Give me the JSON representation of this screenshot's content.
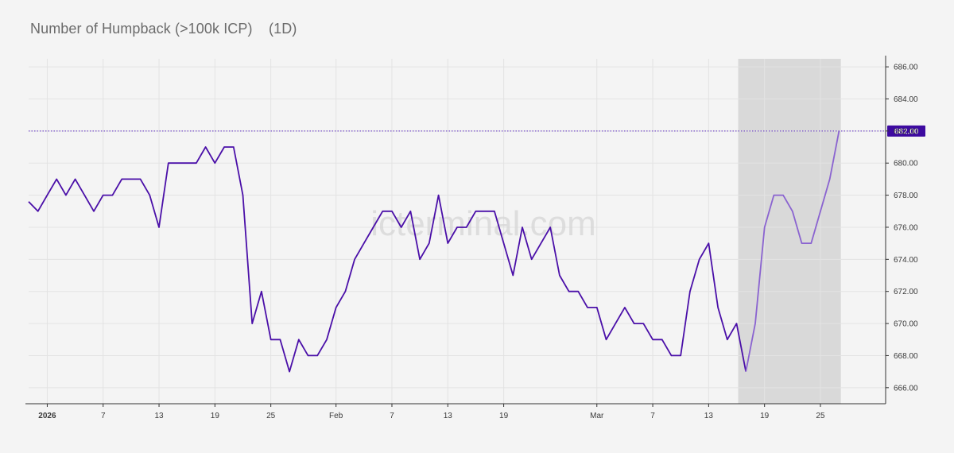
{
  "title": "Number of Humpback (>100k ICP)",
  "interval": "(1D)",
  "watermark": "icterminal.com",
  "chart_data": {
    "type": "line",
    "title": "Number of Humpback (>100k ICP)",
    "xlabel": "",
    "ylabel": "",
    "ylim": [
      665,
      686.5
    ],
    "yticks": [
      "666.00",
      "668.00",
      "670.00",
      "672.00",
      "674.00",
      "676.00",
      "678.00",
      "680.00",
      "682.00",
      "684.00",
      "686.00"
    ],
    "xticks": [
      {
        "date": "2026-01-01",
        "label": "2026",
        "bold": true
      },
      {
        "date": "2026-01-07",
        "label": "7"
      },
      {
        "date": "2026-01-13",
        "label": "13"
      },
      {
        "date": "2026-01-19",
        "label": "19"
      },
      {
        "date": "2026-01-25",
        "label": "25"
      },
      {
        "date": "2026-02-01",
        "label": "Feb"
      },
      {
        "date": "2026-02-07",
        "label": "7"
      },
      {
        "date": "2026-02-13",
        "label": "13"
      },
      {
        "date": "2026-02-19",
        "label": "19"
      },
      {
        "date": "2026-03-01",
        "label": "Mar"
      },
      {
        "date": "2026-03-07",
        "label": "7"
      },
      {
        "date": "2026-03-13",
        "label": "13"
      },
      {
        "date": "2026-03-19",
        "label": "19"
      },
      {
        "date": "2026-03-25",
        "label": "25"
      }
    ],
    "xrange": [
      "2025-12-30",
      "2026-04-01"
    ],
    "current_value": "682.00",
    "current_value_line": 682,
    "highlight_range": [
      "2026-03-16",
      "2026-03-26"
    ],
    "grid": true,
    "series": [
      {
        "color": "#4a0fa8",
        "points": [
          [
            "2025-12-30",
            677.6
          ],
          [
            "2025-12-31",
            677
          ],
          [
            "2026-01-01",
            678
          ],
          [
            "2026-01-02",
            679
          ],
          [
            "2026-01-03",
            678
          ],
          [
            "2026-01-04",
            679
          ],
          [
            "2026-01-05",
            678
          ],
          [
            "2026-01-06",
            677
          ],
          [
            "2026-01-07",
            678
          ],
          [
            "2026-01-08",
            678
          ],
          [
            "2026-01-09",
            679
          ],
          [
            "2026-01-10",
            679
          ],
          [
            "2026-01-11",
            679
          ],
          [
            "2026-01-12",
            678
          ],
          [
            "2026-01-13",
            676
          ],
          [
            "2026-01-14",
            680
          ],
          [
            "2026-01-15",
            680
          ],
          [
            "2026-01-16",
            680
          ],
          [
            "2026-01-17",
            680
          ],
          [
            "2026-01-18",
            681
          ],
          [
            "2026-01-19",
            680
          ],
          [
            "2026-01-20",
            681
          ],
          [
            "2026-01-21",
            681
          ],
          [
            "2026-01-22",
            678
          ],
          [
            "2026-01-23",
            670
          ],
          [
            "2026-01-24",
            672
          ],
          [
            "2026-01-25",
            669
          ],
          [
            "2026-01-26",
            669
          ],
          [
            "2026-01-27",
            667
          ],
          [
            "2026-01-28",
            669
          ],
          [
            "2026-01-29",
            668
          ],
          [
            "2026-01-30",
            668
          ],
          [
            "2026-01-31",
            669
          ],
          [
            "2026-02-01",
            671
          ],
          [
            "2026-02-02",
            672
          ],
          [
            "2026-02-03",
            674
          ],
          [
            "2026-02-04",
            675
          ],
          [
            "2026-02-05",
            676
          ],
          [
            "2026-02-06",
            677
          ],
          [
            "2026-02-07",
            677
          ],
          [
            "2026-02-08",
            676
          ],
          [
            "2026-02-09",
            677
          ],
          [
            "2026-02-10",
            674
          ],
          [
            "2026-02-11",
            675
          ],
          [
            "2026-02-12",
            678
          ],
          [
            "2026-02-13",
            675
          ],
          [
            "2026-02-14",
            676
          ],
          [
            "2026-02-15",
            676
          ],
          [
            "2026-02-16",
            677
          ],
          [
            "2026-02-17",
            677
          ],
          [
            "2026-02-18",
            677
          ],
          [
            "2026-02-19",
            675
          ],
          [
            "2026-02-20",
            673
          ],
          [
            "2026-02-21",
            676
          ],
          [
            "2026-02-22",
            674
          ],
          [
            "2026-02-23",
            675
          ],
          [
            "2026-02-24",
            676
          ],
          [
            "2026-02-25",
            673
          ],
          [
            "2026-02-26",
            672
          ],
          [
            "2026-02-27",
            672
          ],
          [
            "2026-02-28",
            671
          ],
          [
            "2026-03-01",
            671
          ],
          [
            "2026-03-02",
            669
          ],
          [
            "2026-03-03",
            670
          ],
          [
            "2026-03-04",
            671
          ],
          [
            "2026-03-05",
            670
          ],
          [
            "2026-03-06",
            670
          ],
          [
            "2026-03-07",
            669
          ],
          [
            "2026-03-08",
            669
          ],
          [
            "2026-03-09",
            668
          ],
          [
            "2026-03-10",
            668
          ],
          [
            "2026-03-11",
            672
          ],
          [
            "2026-03-12",
            674
          ],
          [
            "2026-03-13",
            675
          ],
          [
            "2026-03-14",
            671
          ],
          [
            "2026-03-15",
            669
          ],
          [
            "2026-03-16",
            670
          ],
          [
            "2026-03-17",
            667
          ]
        ]
      },
      {
        "color": "#8a63d0",
        "points": [
          [
            "2026-03-17",
            667
          ],
          [
            "2026-03-18",
            670
          ],
          [
            "2026-03-19",
            676
          ],
          [
            "2026-03-20",
            678
          ],
          [
            "2026-03-21",
            678
          ],
          [
            "2026-03-22",
            677
          ],
          [
            "2026-03-23",
            675
          ],
          [
            "2026-03-24",
            675
          ],
          [
            "2026-03-25",
            677
          ],
          [
            "2026-03-26",
            679
          ],
          [
            "2026-03-27",
            682
          ]
        ]
      }
    ]
  },
  "colors": {
    "background": "#f4f4f4",
    "grid": "#e3e3e3",
    "highlight": "#d9d9d9",
    "value_label_bg": "#3d0aa0",
    "value_label_text": "#ffffff",
    "ref_line": "#5b2bbf"
  }
}
